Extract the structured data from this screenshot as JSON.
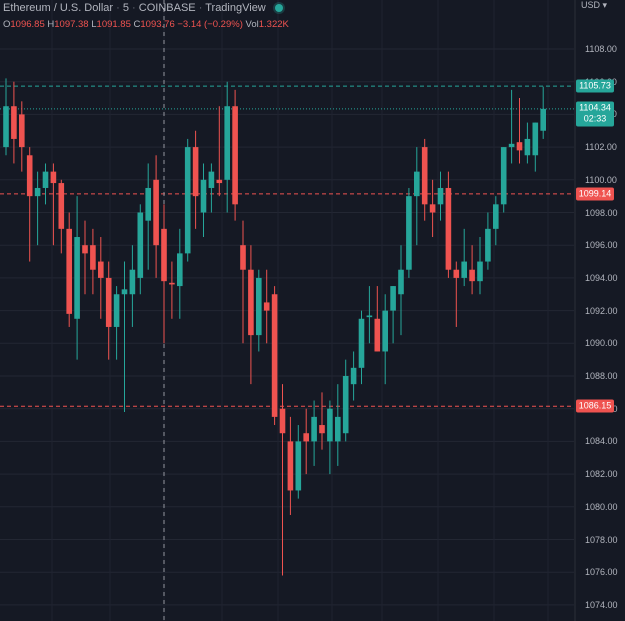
{
  "header": {
    "symbol": "Ethereum / U.S. Dollar",
    "interval": "5",
    "exchange": "COINBASE",
    "source": "TradingView",
    "sep": "·"
  },
  "ohlc": {
    "o_label": "O",
    "o": "1096.85",
    "h_label": "H",
    "h": "1097.38",
    "l_label": "L",
    "l": "1091.85",
    "c_label": "C",
    "c": "1093.76",
    "chg": "−3.14 (−0.29%)",
    "vol_label": "Vol",
    "vol": "1.322K"
  },
  "currency_label": "USD ▾",
  "tags": {
    "high": "1105.73",
    "last": "1104.34",
    "countdown": "02:33",
    "upper": "1099.14",
    "lower": "1086.15"
  },
  "colors": {
    "up": "#26a69a",
    "down": "#ef5350",
    "bg": "#151924",
    "high_tag": "#26a69a",
    "red_tag": "#ef5350"
  },
  "chart_data": {
    "type": "candlestick",
    "ylim": [
      1073,
      1111
    ],
    "y_ticks": [
      "1108.00",
      "1106.00",
      "1104.00",
      "1102.00",
      "1100.00",
      "1098.00",
      "1096.00",
      "1094.00",
      "1092.00",
      "1090.00",
      "1088.00",
      "1086.00",
      "1084.00",
      "1082.00",
      "1080.00",
      "1078.00",
      "1076.00",
      "1074.00"
    ],
    "candles": [
      {
        "o": 1102.0,
        "h": 1106.2,
        "l": 1101.5,
        "c": 1104.5
      },
      {
        "o": 1104.5,
        "h": 1106.0,
        "l": 1101.0,
        "c": 1102.5
      },
      {
        "o": 1104.0,
        "h": 1104.8,
        "l": 1100.5,
        "c": 1102.0
      },
      {
        "o": 1101.5,
        "h": 1102.0,
        "l": 1095.0,
        "c": 1099.0
      },
      {
        "o": 1099.0,
        "h": 1100.5,
        "l": 1096.0,
        "c": 1099.5
      },
      {
        "o": 1099.5,
        "h": 1101.0,
        "l": 1098.5,
        "c": 1100.5
      },
      {
        "o": 1100.5,
        "h": 1101.0,
        "l": 1096.0,
        "c": 1099.8
      },
      {
        "o": 1099.8,
        "h": 1100.0,
        "l": 1095.5,
        "c": 1097.0
      },
      {
        "o": 1097.0,
        "h": 1098.0,
        "l": 1091.0,
        "c": 1091.8
      },
      {
        "o": 1091.5,
        "h": 1099.0,
        "l": 1089.0,
        "c": 1096.5
      },
      {
        "o": 1096.0,
        "h": 1097.5,
        "l": 1093.0,
        "c": 1095.5
      },
      {
        "o": 1096.0,
        "h": 1097.0,
        "l": 1093.0,
        "c": 1094.5
      },
      {
        "o": 1095.0,
        "h": 1096.5,
        "l": 1091.5,
        "c": 1094.0
      },
      {
        "o": 1094.0,
        "h": 1095.0,
        "l": 1089.0,
        "c": 1091.0
      },
      {
        "o": 1091.0,
        "h": 1093.5,
        "l": 1089.0,
        "c": 1093.0
      },
      {
        "o": 1093.0,
        "h": 1095.0,
        "l": 1085.8,
        "c": 1093.3
      },
      {
        "o": 1093.0,
        "h": 1096.0,
        "l": 1091.0,
        "c": 1094.5
      },
      {
        "o": 1094.0,
        "h": 1098.5,
        "l": 1093.0,
        "c": 1098.0
      },
      {
        "o": 1097.5,
        "h": 1101.0,
        "l": 1094.5,
        "c": 1099.5
      },
      {
        "o": 1100.0,
        "h": 1101.5,
        "l": 1094.0,
        "c": 1096.0
      },
      {
        "o": 1097.0,
        "h": 1098.5,
        "l": 1090.0,
        "c": 1093.8
      },
      {
        "o": 1093.7,
        "h": 1095.0,
        "l": 1091.5,
        "c": 1093.6
      },
      {
        "o": 1093.5,
        "h": 1097.0,
        "l": 1091.5,
        "c": 1095.5
      },
      {
        "o": 1095.5,
        "h": 1102.5,
        "l": 1095.0,
        "c": 1102.0
      },
      {
        "o": 1102.0,
        "h": 1103.0,
        "l": 1097.0,
        "c": 1099.0
      },
      {
        "o": 1098.0,
        "h": 1101.0,
        "l": 1096.5,
        "c": 1100.0
      },
      {
        "o": 1099.5,
        "h": 1101.0,
        "l": 1098.0,
        "c": 1100.5
      },
      {
        "o": 1100.0,
        "h": 1104.5,
        "l": 1099.0,
        "c": 1099.8
      },
      {
        "o": 1100.0,
        "h": 1106.0,
        "l": 1098.0,
        "c": 1104.5
      },
      {
        "o": 1104.5,
        "h": 1105.5,
        "l": 1097.5,
        "c": 1098.5
      },
      {
        "o": 1096.0,
        "h": 1097.5,
        "l": 1090.0,
        "c": 1094.5
      },
      {
        "o": 1094.5,
        "h": 1096.0,
        "l": 1087.5,
        "c": 1090.5
      },
      {
        "o": 1090.5,
        "h": 1094.5,
        "l": 1089.5,
        "c": 1094.0
      },
      {
        "o": 1092.5,
        "h": 1094.5,
        "l": 1090.0,
        "c": 1092.0
      },
      {
        "o": 1093.0,
        "h": 1093.5,
        "l": 1085.0,
        "c": 1085.5
      },
      {
        "o": 1086.0,
        "h": 1087.5,
        "l": 1075.8,
        "c": 1084.5
      },
      {
        "o": 1084.0,
        "h": 1085.5,
        "l": 1079.5,
        "c": 1081.0
      },
      {
        "o": 1081.0,
        "h": 1085.0,
        "l": 1080.5,
        "c": 1084.0
      },
      {
        "o": 1084.5,
        "h": 1086.0,
        "l": 1082.0,
        "c": 1084.0
      },
      {
        "o": 1084.0,
        "h": 1086.5,
        "l": 1082.5,
        "c": 1085.5
      },
      {
        "o": 1085.0,
        "h": 1087.0,
        "l": 1083.5,
        "c": 1084.5
      },
      {
        "o": 1084.0,
        "h": 1086.5,
        "l": 1082.0,
        "c": 1086.0
      },
      {
        "o": 1084.0,
        "h": 1087.5,
        "l": 1082.5,
        "c": 1085.5
      },
      {
        "o": 1084.5,
        "h": 1089.0,
        "l": 1084.0,
        "c": 1088.0
      },
      {
        "o": 1087.5,
        "h": 1089.5,
        "l": 1086.5,
        "c": 1088.5
      },
      {
        "o": 1088.5,
        "h": 1092.0,
        "l": 1087.5,
        "c": 1091.5
      },
      {
        "o": 1091.6,
        "h": 1093.5,
        "l": 1090.0,
        "c": 1091.7
      },
      {
        "o": 1091.5,
        "h": 1093.5,
        "l": 1089.5,
        "c": 1089.5
      },
      {
        "o": 1089.5,
        "h": 1093.0,
        "l": 1087.5,
        "c": 1092.0
      },
      {
        "o": 1092.0,
        "h": 1093.5,
        "l": 1090.0,
        "c": 1093.5
      },
      {
        "o": 1093.0,
        "h": 1096.0,
        "l": 1090.5,
        "c": 1094.5
      },
      {
        "o": 1094.5,
        "h": 1099.5,
        "l": 1094.0,
        "c": 1099.0
      },
      {
        "o": 1099.0,
        "h": 1102.0,
        "l": 1096.0,
        "c": 1100.5
      },
      {
        "o": 1102.0,
        "h": 1102.5,
        "l": 1097.5,
        "c": 1098.5
      },
      {
        "o": 1098.5,
        "h": 1100.0,
        "l": 1096.5,
        "c": 1098.0
      },
      {
        "o": 1098.5,
        "h": 1100.5,
        "l": 1097.5,
        "c": 1099.5
      },
      {
        "o": 1099.5,
        "h": 1100.5,
        "l": 1094.0,
        "c": 1094.5
      },
      {
        "o": 1094.5,
        "h": 1095.0,
        "l": 1091.0,
        "c": 1094.0
      },
      {
        "o": 1094.0,
        "h": 1097.0,
        "l": 1093.5,
        "c": 1095.0
      },
      {
        "o": 1094.5,
        "h": 1096.0,
        "l": 1093.0,
        "c": 1093.8
      },
      {
        "o": 1093.8,
        "h": 1096.5,
        "l": 1093.0,
        "c": 1095.0
      },
      {
        "o": 1095.0,
        "h": 1098.0,
        "l": 1094.5,
        "c": 1097.0
      },
      {
        "o": 1097.0,
        "h": 1099.0,
        "l": 1096.0,
        "c": 1098.5
      },
      {
        "o": 1098.5,
        "h": 1102.0,
        "l": 1098.0,
        "c": 1102.0
      },
      {
        "o": 1102.0,
        "h": 1105.5,
        "l": 1101.0,
        "c": 1102.2
      },
      {
        "o": 1102.3,
        "h": 1105.0,
        "l": 1101.0,
        "c": 1101.8
      },
      {
        "o": 1101.5,
        "h": 1103.5,
        "l": 1101.0,
        "c": 1102.5
      },
      {
        "o": 1101.5,
        "h": 1103.5,
        "l": 1100.5,
        "c": 1103.5
      },
      {
        "o": 1103.0,
        "h": 1105.7,
        "l": 1102.5,
        "c": 1104.34
      }
    ]
  }
}
